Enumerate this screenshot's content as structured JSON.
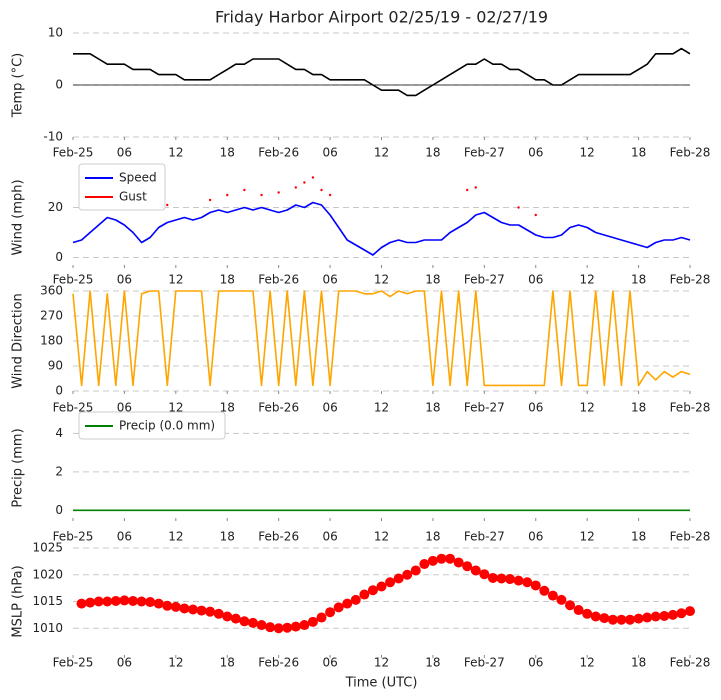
{
  "chart_data": [
    {
      "type": "line",
      "title": "Friday Harbor Airport 02/25/19 - 02/27/19",
      "ylabel": "Temp (°C)",
      "xlim": [
        0,
        72
      ],
      "ylim": [
        -10,
        10
      ],
      "yticks": [
        -10,
        0,
        10
      ],
      "grid": true,
      "zero_line": true,
      "xticks": [
        {
          "value": 0,
          "label": "Feb-25"
        },
        {
          "value": 6,
          "label": "06"
        },
        {
          "value": 12,
          "label": "12"
        },
        {
          "value": 18,
          "label": "18"
        },
        {
          "value": 24,
          "label": "Feb-26"
        },
        {
          "value": 30,
          "label": "06"
        },
        {
          "value": 36,
          "label": "12"
        },
        {
          "value": 42,
          "label": "18"
        },
        {
          "value": 48,
          "label": "Feb-27"
        },
        {
          "value": 54,
          "label": "06"
        },
        {
          "value": 60,
          "label": "12"
        },
        {
          "value": 66,
          "label": "18"
        },
        {
          "value": 72,
          "label": "Feb-28"
        }
      ],
      "series": [
        {
          "name": "Temp",
          "color": "#000000",
          "x": [
            0,
            1,
            2,
            3,
            4,
            5,
            6,
            7,
            8,
            9,
            10,
            11,
            12,
            13,
            14,
            15,
            16,
            17,
            18,
            19,
            20,
            21,
            22,
            23,
            24,
            25,
            26,
            27,
            28,
            29,
            30,
            31,
            32,
            33,
            34,
            35,
            36,
            37,
            38,
            39,
            40,
            41,
            42,
            43,
            44,
            45,
            46,
            47,
            48,
            49,
            50,
            51,
            52,
            53,
            54,
            55,
            56,
            57,
            58,
            59,
            60,
            61,
            62,
            63,
            64,
            65,
            66,
            67,
            68,
            69,
            70,
            71,
            72
          ],
          "values": [
            6,
            6,
            6,
            5,
            4,
            4,
            4,
            3,
            3,
            3,
            2,
            2,
            2,
            1,
            1,
            1,
            1,
            2,
            3,
            4,
            4,
            5,
            5,
            5,
            5,
            4,
            3,
            3,
            2,
            2,
            1,
            1,
            1,
            1,
            1,
            0,
            -1,
            -1,
            -1,
            -2,
            -2,
            -1,
            0,
            1,
            2,
            3,
            4,
            4,
            5,
            4,
            4,
            3,
            3,
            2,
            1,
            1,
            0,
            0,
            1,
            2,
            2,
            2,
            2,
            2,
            2,
            2,
            3,
            4,
            6,
            6,
            6,
            7,
            6
          ]
        }
      ]
    },
    {
      "type": "line",
      "ylabel": "Wind (mph)",
      "legend": "upper left",
      "xlim": [
        0,
        72
      ],
      "ylim": [
        -3,
        35
      ],
      "yticks": [
        0,
        20
      ],
      "grid": true,
      "xticks": [
        {
          "value": 0,
          "label": "Feb-25"
        },
        {
          "value": 6,
          "label": "06"
        },
        {
          "value": 12,
          "label": "12"
        },
        {
          "value": 18,
          "label": "18"
        },
        {
          "value": 24,
          "label": "Feb-26"
        },
        {
          "value": 30,
          "label": "06"
        },
        {
          "value": 36,
          "label": "12"
        },
        {
          "value": 42,
          "label": "18"
        },
        {
          "value": 48,
          "label": "Feb-27"
        },
        {
          "value": 54,
          "label": "06"
        },
        {
          "value": 60,
          "label": "12"
        },
        {
          "value": 66,
          "label": "18"
        },
        {
          "value": 72,
          "label": "Feb-28"
        }
      ],
      "series": [
        {
          "name": "Speed",
          "color": "#0000ff",
          "x": [
            0,
            1,
            2,
            3,
            4,
            5,
            6,
            7,
            8,
            9,
            10,
            11,
            12,
            13,
            14,
            15,
            16,
            17,
            18,
            19,
            20,
            21,
            22,
            23,
            24,
            25,
            26,
            27,
            28,
            29,
            30,
            31,
            32,
            33,
            34,
            35,
            36,
            37,
            38,
            39,
            40,
            41,
            42,
            43,
            44,
            45,
            46,
            47,
            48,
            49,
            50,
            51,
            52,
            53,
            54,
            55,
            56,
            57,
            58,
            59,
            60,
            61,
            62,
            63,
            64,
            65,
            66,
            67,
            68,
            69,
            70,
            71,
            72
          ],
          "values": [
            6,
            7,
            10,
            13,
            16,
            15,
            13,
            10,
            6,
            8,
            12,
            14,
            15,
            16,
            15,
            16,
            18,
            19,
            18,
            19,
            20,
            19,
            20,
            19,
            18,
            19,
            21,
            20,
            22,
            21,
            17,
            12,
            7,
            5,
            3,
            1,
            4,
            6,
            7,
            6,
            6,
            7,
            7,
            7,
            10,
            12,
            14,
            17,
            18,
            16,
            14,
            13,
            13,
            11,
            9,
            8,
            8,
            9,
            12,
            13,
            12,
            10,
            9,
            8,
            7,
            6,
            5,
            4,
            6,
            7,
            7,
            8,
            7
          ]
        },
        {
          "name": "Gust",
          "color": "#ff0000",
          "mode": "markers",
          "x": [
            11,
            16,
            18,
            20,
            22,
            24,
            26,
            27,
            28,
            29,
            30,
            46,
            47,
            52,
            54
          ],
          "values": [
            21,
            23,
            25,
            27,
            25,
            26,
            28,
            30,
            32,
            27,
            25,
            27,
            28,
            20,
            17
          ]
        }
      ]
    },
    {
      "type": "line",
      "ylabel": "Wind Direction",
      "xlim": [
        0,
        72
      ],
      "ylim": [
        0,
        360
      ],
      "yticks": [
        0,
        90,
        180,
        270,
        360
      ],
      "grid": true,
      "xticks": [
        {
          "value": 0,
          "label": "Feb-25"
        },
        {
          "value": 6,
          "label": "06"
        },
        {
          "value": 12,
          "label": "12"
        },
        {
          "value": 18,
          "label": "18"
        },
        {
          "value": 24,
          "label": "Feb-26"
        },
        {
          "value": 30,
          "label": "06"
        },
        {
          "value": 36,
          "label": "12"
        },
        {
          "value": 42,
          "label": "18"
        },
        {
          "value": 48,
          "label": "Feb-27"
        },
        {
          "value": 54,
          "label": "06"
        },
        {
          "value": 60,
          "label": "12"
        },
        {
          "value": 66,
          "label": "18"
        },
        {
          "value": 72,
          "label": "Feb-28"
        }
      ],
      "series": [
        {
          "name": "Direction",
          "color": "#ffa500",
          "x": [
            0,
            1,
            2,
            3,
            4,
            5,
            6,
            7,
            8,
            9,
            10,
            11,
            12,
            13,
            14,
            15,
            16,
            17,
            18,
            19,
            20,
            21,
            22,
            23,
            24,
            25,
            26,
            27,
            28,
            29,
            30,
            31,
            32,
            33,
            34,
            35,
            36,
            37,
            38,
            39,
            40,
            41,
            42,
            43,
            44,
            45,
            46,
            47,
            48,
            49,
            50,
            51,
            52,
            53,
            54,
            55,
            56,
            57,
            58,
            59,
            60,
            61,
            62,
            63,
            64,
            65,
            66,
            67,
            68,
            69,
            70,
            71,
            72
          ],
          "values": [
            350,
            20,
            360,
            20,
            350,
            20,
            360,
            20,
            350,
            360,
            360,
            20,
            360,
            360,
            360,
            360,
            20,
            360,
            360,
            360,
            360,
            360,
            20,
            360,
            20,
            360,
            20,
            360,
            20,
            360,
            20,
            360,
            360,
            360,
            350,
            350,
            360,
            340,
            360,
            350,
            360,
            360,
            20,
            360,
            20,
            360,
            20,
            360,
            20,
            20,
            20,
            20,
            20,
            20,
            20,
            20,
            360,
            20,
            360,
            20,
            20,
            360,
            20,
            360,
            20,
            360,
            20,
            70,
            40,
            70,
            50,
            70,
            60
          ]
        }
      ]
    },
    {
      "type": "line",
      "ylabel": "Precip (mm)",
      "legend": "upper left",
      "xlim": [
        0,
        72
      ],
      "ylim": [
        -0.4,
        4.8
      ],
      "yticks": [
        0,
        2,
        4
      ],
      "grid": true,
      "xticks": [
        {
          "value": 0,
          "label": "Feb-25"
        },
        {
          "value": 6,
          "label": "06"
        },
        {
          "value": 12,
          "label": "12"
        },
        {
          "value": 18,
          "label": "18"
        },
        {
          "value": 24,
          "label": "Feb-26"
        },
        {
          "value": 30,
          "label": "06"
        },
        {
          "value": 36,
          "label": "12"
        },
        {
          "value": 42,
          "label": "18"
        },
        {
          "value": 48,
          "label": "Feb-27"
        },
        {
          "value": 54,
          "label": "06"
        },
        {
          "value": 60,
          "label": "12"
        },
        {
          "value": 66,
          "label": "18"
        },
        {
          "value": 72,
          "label": "Feb-28"
        }
      ],
      "series": [
        {
          "name": "Precip (0.0 mm)",
          "color": "#008000",
          "x": [
            0,
            1,
            2,
            3,
            4,
            5,
            6,
            7,
            8,
            9,
            10,
            11,
            12,
            13,
            14,
            15,
            16,
            17,
            18,
            19,
            20,
            21,
            22,
            23,
            24,
            25,
            26,
            27,
            28,
            29,
            30,
            31,
            32,
            33,
            34,
            35,
            36,
            37,
            38,
            39,
            40,
            41,
            42,
            43,
            44,
            45,
            46,
            47,
            48,
            49,
            50,
            51,
            52,
            53,
            54,
            55,
            56,
            57,
            58,
            59,
            60,
            61,
            62,
            63,
            64,
            65,
            66,
            67,
            68,
            69,
            70,
            71,
            72
          ],
          "values": [
            0,
            0,
            0,
            0,
            0,
            0,
            0,
            0,
            0,
            0,
            0,
            0,
            0,
            0,
            0,
            0,
            0,
            0,
            0,
            0,
            0,
            0,
            0,
            0,
            0,
            0,
            0,
            0,
            0,
            0,
            0,
            0,
            0,
            0,
            0,
            0,
            0,
            0,
            0,
            0,
            0,
            0,
            0,
            0,
            0,
            0,
            0,
            0,
            0,
            0,
            0,
            0,
            0,
            0,
            0,
            0,
            0,
            0,
            0,
            0,
            0,
            0,
            0,
            0,
            0,
            0,
            0,
            0,
            0,
            0,
            0,
            0,
            0
          ]
        }
      ]
    },
    {
      "type": "scatter",
      "ylabel": "MSLP (hPa)",
      "xlabel": "Time (UTC)",
      "xlim": [
        0,
        72
      ],
      "ylim": [
        1005,
        1025
      ],
      "yticks": [
        1010,
        1015,
        1020,
        1025
      ],
      "grid": true,
      "xticks": [
        {
          "value": 0,
          "label": "Feb-25"
        },
        {
          "value": 6,
          "label": "06"
        },
        {
          "value": 12,
          "label": "12"
        },
        {
          "value": 18,
          "label": "18"
        },
        {
          "value": 24,
          "label": "Feb-26"
        },
        {
          "value": 30,
          "label": "06"
        },
        {
          "value": 36,
          "label": "12"
        },
        {
          "value": 42,
          "label": "18"
        },
        {
          "value": 48,
          "label": "Feb-27"
        },
        {
          "value": 54,
          "label": "06"
        },
        {
          "value": 60,
          "label": "12"
        },
        {
          "value": 66,
          "label": "18"
        },
        {
          "value": 72,
          "label": "Feb-28"
        }
      ],
      "series": [
        {
          "name": "MSLP",
          "color": "#ff0000",
          "x": [
            1,
            2,
            3,
            4,
            5,
            6,
            7,
            8,
            9,
            10,
            11,
            12,
            13,
            14,
            15,
            16,
            17,
            18,
            19,
            20,
            21,
            22,
            23,
            24,
            25,
            26,
            27,
            28,
            29,
            30,
            31,
            32,
            33,
            34,
            35,
            36,
            37,
            38,
            39,
            40,
            41,
            42,
            43,
            44,
            45,
            46,
            47,
            48,
            49,
            50,
            51,
            52,
            53,
            54,
            55,
            56,
            57,
            58,
            59,
            60,
            61,
            62,
            63,
            64,
            65,
            66,
            67,
            68,
            69,
            70,
            71,
            72
          ],
          "values": [
            1014.6,
            1014.8,
            1015.0,
            1015.0,
            1015.1,
            1015.2,
            1015.1,
            1015.0,
            1014.9,
            1014.6,
            1014.2,
            1014.0,
            1013.7,
            1013.5,
            1013.3,
            1013.1,
            1012.7,
            1012.2,
            1011.8,
            1011.3,
            1011.0,
            1010.6,
            1010.2,
            1010.0,
            1010.1,
            1010.3,
            1010.6,
            1011.2,
            1012.0,
            1013.0,
            1013.9,
            1014.6,
            1015.3,
            1016.3,
            1017.1,
            1017.8,
            1018.6,
            1019.3,
            1020.0,
            1020.8,
            1022.0,
            1022.6,
            1023.0,
            1023.0,
            1022.3,
            1021.6,
            1020.8,
            1020.1,
            1019.4,
            1019.3,
            1019.2,
            1018.9,
            1018.6,
            1018.0,
            1017.0,
            1016.1,
            1015.3,
            1014.3,
            1013.4,
            1012.7,
            1012.2,
            1011.9,
            1011.6,
            1011.6,
            1011.6,
            1011.8,
            1012.0,
            1012.2,
            1012.3,
            1012.5,
            1012.8,
            1013.2
          ]
        }
      ]
    }
  ]
}
